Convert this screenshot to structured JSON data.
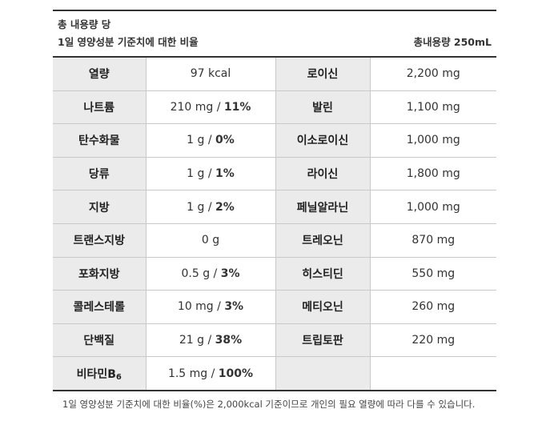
{
  "header": {
    "line1": "총 내용량 당",
    "line2": "1일 영양성분 기준치에 대한 비율",
    "total": "총내용량 250mL"
  },
  "rows": [
    {
      "left_label": "열량",
      "left_amount": "97 kcal",
      "left_pct": "",
      "right_label": "로이신",
      "right_value": "2,200 mg"
    },
    {
      "left_label": "나트륨",
      "left_amount": "210 mg / ",
      "left_pct": "11%",
      "right_label": "발린",
      "right_value": "1,100 mg"
    },
    {
      "left_label": "탄수화물",
      "left_amount": "1 g / ",
      "left_pct": "0%",
      "right_label": "이소로이신",
      "right_value": "1,000 mg"
    },
    {
      "left_label": "당류",
      "left_amount": "1 g / ",
      "left_pct": "1%",
      "right_label": "라이신",
      "right_value": "1,800 mg"
    },
    {
      "left_label": "지방",
      "left_amount": "1 g / ",
      "left_pct": "2%",
      "right_label": "페닐알라닌",
      "right_value": "1,000 mg"
    },
    {
      "left_label": "트랜스지방",
      "left_amount": "0 g",
      "left_pct": "",
      "right_label": "트레오닌",
      "right_value": "870 mg"
    },
    {
      "left_label": "포화지방",
      "left_amount": "0.5 g / ",
      "left_pct": "3%",
      "right_label": "히스티딘",
      "right_value": "550 mg"
    },
    {
      "left_label": "콜레스테롤",
      "left_amount": "10 mg / ",
      "left_pct": "3%",
      "right_label": "메티오닌",
      "right_value": "260 mg"
    },
    {
      "left_label": "단백질",
      "left_amount": "21 g / ",
      "left_pct": "38%",
      "right_label": "트립토판",
      "right_value": "220 mg"
    }
  ],
  "last_row": {
    "label_main": "비타민B",
    "label_sub": "6",
    "left_amount": "1.5 mg / ",
    "left_pct": "100%"
  },
  "footnote": "1일 영양성분 기준치에 대한 비율(%)은 2,000kcal 기준이므로 개인의 필요 열량에 따라 다를 수 있습니다."
}
